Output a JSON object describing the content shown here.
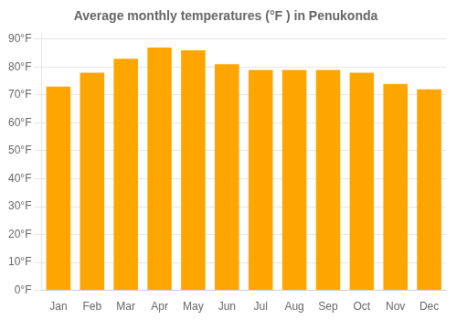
{
  "chart_data": {
    "type": "bar",
    "title": "Average monthly temperatures (°F ) in Penukonda",
    "categories": [
      "Jan",
      "Feb",
      "Mar",
      "Apr",
      "May",
      "Jun",
      "Jul",
      "Aug",
      "Sep",
      "Oct",
      "Nov",
      "Dec"
    ],
    "values": [
      73,
      78,
      83,
      87,
      86,
      81,
      79,
      79,
      79,
      78,
      74,
      72
    ],
    "color": "#FFA500",
    "ylim": [
      0,
      92
    ],
    "yticks": [
      {
        "value": 0,
        "label": "0°F"
      },
      {
        "value": 10,
        "label": "10°F"
      },
      {
        "value": 20,
        "label": "20°F"
      },
      {
        "value": 30,
        "label": "30°F"
      },
      {
        "value": 40,
        "label": "40°F"
      },
      {
        "value": 50,
        "label": "50°F"
      },
      {
        "value": 60,
        "label": "60°F"
      },
      {
        "value": 70,
        "label": "70°F"
      },
      {
        "value": 80,
        "label": "80°F"
      },
      {
        "value": 90,
        "label": "90°F"
      }
    ],
    "grid": true
  }
}
